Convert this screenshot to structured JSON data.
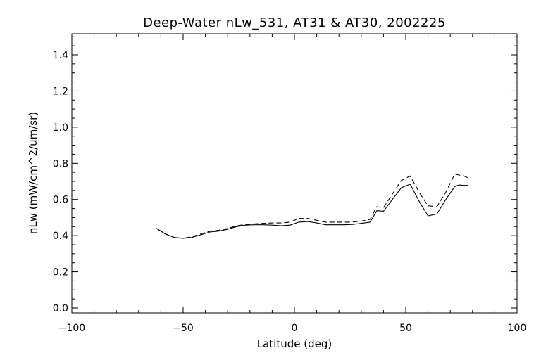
{
  "chart_data": {
    "type": "line",
    "title": "Deep-Water nLw_531, AT31 & AT30, 2002225",
    "xlabel": "Latitude (deg)",
    "ylabel": "nLw (mW/cm^2/um/sr)",
    "xlim": [
      -100,
      100
    ],
    "ylim": [
      0.0,
      1.5
    ],
    "xticks": [
      -100,
      -50,
      0,
      50,
      100
    ],
    "xtick_labels": [
      "−100",
      "−50",
      "0",
      "50",
      "100"
    ],
    "yticks": [
      0.0,
      0.2,
      0.4,
      0.6,
      0.8,
      1.0,
      1.2,
      1.4
    ],
    "ytick_labels": [
      "0.0",
      "0.2",
      "0.4",
      "0.6",
      "0.8",
      "1.0",
      "1.2",
      "1.4"
    ],
    "grid": false,
    "series": [
      {
        "style": "solid",
        "x": [
          -62,
          -58,
          -54,
          -50,
          -46,
          -42,
          -38,
          -34,
          -30,
          -26,
          -22,
          -18,
          -14,
          -10,
          -6,
          -2,
          2,
          6,
          10,
          14,
          18,
          22,
          26,
          30,
          34,
          37,
          40,
          44,
          48,
          52,
          56,
          60,
          64,
          68,
          72,
          74,
          76,
          78
        ],
        "y": [
          0.44,
          0.41,
          0.39,
          0.385,
          0.39,
          0.405,
          0.42,
          0.425,
          0.435,
          0.45,
          0.458,
          0.46,
          0.46,
          0.458,
          0.455,
          0.458,
          0.475,
          0.478,
          0.47,
          0.46,
          0.46,
          0.46,
          0.462,
          0.468,
          0.475,
          0.538,
          0.535,
          0.6,
          0.665,
          0.685,
          0.59,
          0.51,
          0.52,
          0.6,
          0.672,
          0.68,
          0.678,
          0.678
        ]
      },
      {
        "style": "dashed",
        "x": [
          -62,
          -58,
          -54,
          -50,
          -46,
          -42,
          -38,
          -34,
          -30,
          -26,
          -22,
          -18,
          -14,
          -10,
          -6,
          -2,
          2,
          6,
          10,
          14,
          18,
          22,
          26,
          30,
          34,
          37,
          40,
          44,
          48,
          52,
          56,
          60,
          64,
          68,
          72,
          74,
          76,
          78
        ],
        "y": [
          0.44,
          0.41,
          0.39,
          0.385,
          0.395,
          0.41,
          0.425,
          0.43,
          0.44,
          0.455,
          0.462,
          0.465,
          0.468,
          0.47,
          0.47,
          0.475,
          0.495,
          0.495,
          0.485,
          0.475,
          0.475,
          0.475,
          0.475,
          0.48,
          0.49,
          0.56,
          0.555,
          0.63,
          0.705,
          0.73,
          0.64,
          0.565,
          0.56,
          0.64,
          0.74,
          0.735,
          0.73,
          0.72
        ]
      }
    ]
  }
}
